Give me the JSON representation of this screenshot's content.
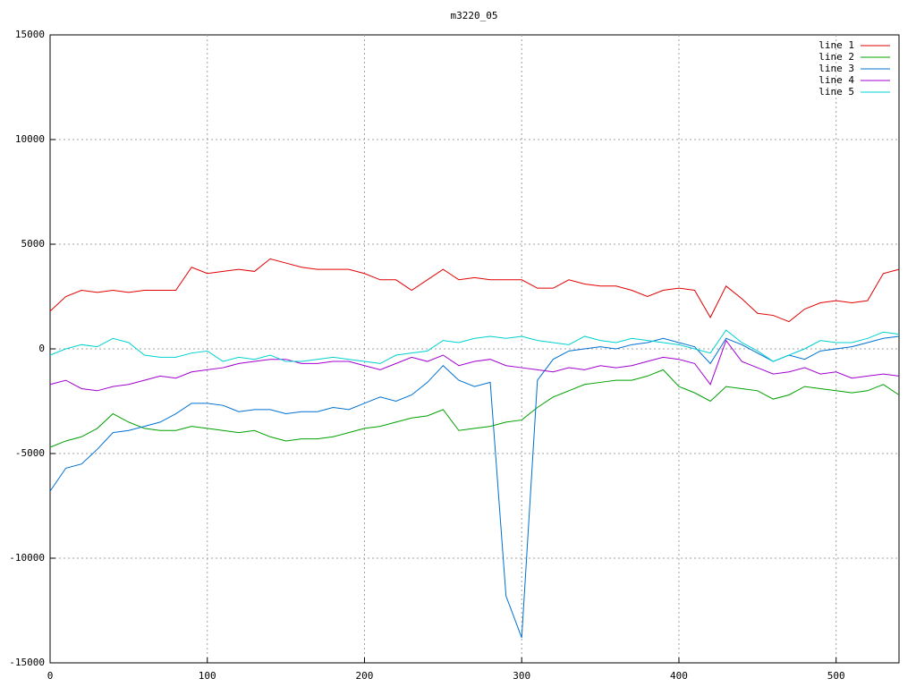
{
  "chart_data": {
    "type": "line",
    "title": "m3220_05",
    "x": [
      0,
      10,
      20,
      30,
      40,
      50,
      60,
      70,
      80,
      90,
      100,
      110,
      120,
      130,
      140,
      150,
      160,
      170,
      180,
      190,
      200,
      210,
      220,
      230,
      240,
      250,
      260,
      270,
      280,
      290,
      300,
      310,
      320,
      330,
      340,
      350,
      360,
      370,
      380,
      390,
      400,
      410,
      420,
      430,
      440,
      450,
      460,
      470,
      480,
      490,
      500,
      510,
      520,
      530,
      540
    ],
    "xlim": [
      0,
      540
    ],
    "xticks": [
      0,
      100,
      200,
      300,
      400,
      500
    ],
    "ylim": [
      -15000,
      15000
    ],
    "yticks": [
      -15000,
      -10000,
      -5000,
      0,
      5000,
      10000,
      15000
    ],
    "grid": true,
    "legend": "top-right",
    "series": [
      {
        "name": "line 1",
        "color": "#e00000",
        "values": [
          1800,
          2500,
          2800,
          2700,
          2800,
          2700,
          2800,
          2800,
          2800,
          3900,
          3600,
          3700,
          3800,
          3700,
          4300,
          4100,
          3900,
          3800,
          3800,
          3800,
          3600,
          3300,
          3300,
          2800,
          3300,
          3800,
          3300,
          3400,
          3300,
          3300,
          3300,
          2900,
          2900,
          3300,
          3100,
          3000,
          3000,
          2800,
          2500,
          2800,
          2900,
          2800,
          1500,
          3000,
          2400,
          1700,
          1600,
          1300,
          1900,
          2200,
          2300,
          2200,
          2300,
          3600,
          3800
        ]
      },
      {
        "name": "line 2",
        "color": "#00a000",
        "values": [
          -4700,
          -4400,
          -4200,
          -3800,
          -3100,
          -3500,
          -3800,
          -3900,
          -3900,
          -3700,
          -3800,
          -3900,
          -4000,
          -3900,
          -4200,
          -4400,
          -4300,
          -4300,
          -4200,
          -4000,
          -3800,
          -3700,
          -3500,
          -3300,
          -3200,
          -2900,
          -3900,
          -3800,
          -3700,
          -3500,
          -3400,
          -2800,
          -2300,
          -2000,
          -1700,
          -1600,
          -1500,
          -1500,
          -1300,
          -1000,
          -1800,
          -2100,
          -2500,
          -1800,
          -1900,
          -2000,
          -2400,
          -2200,
          -1800,
          -1900,
          -2000,
          -2100,
          -2000,
          -1700,
          -2200
        ]
      },
      {
        "name": "line 3",
        "color": "#0070d0",
        "values": [
          -6800,
          -5700,
          -5500,
          -4800,
          -4000,
          -3900,
          -3700,
          -3500,
          -3100,
          -2600,
          -2600,
          -2700,
          -3000,
          -2900,
          -2900,
          -3100,
          -3000,
          -3000,
          -2800,
          -2900,
          -2600,
          -2300,
          -2500,
          -2200,
          -1600,
          -800,
          -1500,
          -1800,
          -1600,
          -11800,
          -13800,
          -1500,
          -500,
          -100,
          0,
          100,
          0,
          200,
          300,
          500,
          300,
          100,
          -700,
          500,
          200,
          -200,
          -600,
          -300,
          -500,
          -100,
          0,
          100,
          300,
          500,
          600
        ]
      },
      {
        "name": "line 4",
        "color": "#a000d0",
        "values": [
          -1700,
          -1500,
          -1900,
          -2000,
          -1800,
          -1700,
          -1500,
          -1300,
          -1400,
          -1100,
          -1000,
          -900,
          -700,
          -600,
          -500,
          -500,
          -700,
          -700,
          -600,
          -600,
          -800,
          -1000,
          -700,
          -400,
          -600,
          -300,
          -800,
          -600,
          -500,
          -800,
          -900,
          -1000,
          -1100,
          -900,
          -1000,
          -800,
          -900,
          -800,
          -600,
          -400,
          -500,
          -700,
          -1700,
          400,
          -600,
          -900,
          -1200,
          -1100,
          -900,
          -1200,
          -1100,
          -1400,
          -1300,
          -1200,
          -1300
        ]
      },
      {
        "name": "line 5",
        "color": "#00d0d0",
        "values": [
          -300,
          0,
          200,
          100,
          500,
          300,
          -300,
          -400,
          -400,
          -200,
          -100,
          -600,
          -400,
          -500,
          -300,
          -600,
          -600,
          -500,
          -400,
          -500,
          -600,
          -700,
          -300,
          -200,
          -100,
          400,
          300,
          500,
          600,
          500,
          600,
          400,
          300,
          200,
          600,
          400,
          300,
          500,
          400,
          300,
          200,
          0,
          -200,
          900,
          300,
          -100,
          -600,
          -300,
          0,
          400,
          300,
          300,
          500,
          800,
          700
        ]
      }
    ]
  }
}
